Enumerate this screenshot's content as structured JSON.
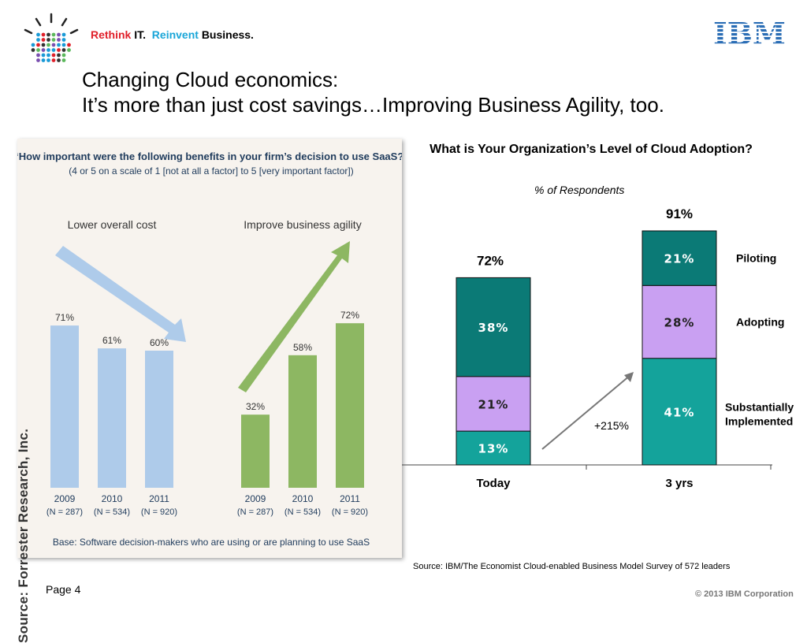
{
  "header": {
    "tagline": {
      "rethink": "Rethink",
      "it": "IT.",
      "reinvent": "Reinvent",
      "business": "Business."
    },
    "logo_text": "IBM",
    "title_line1": "Changing Cloud economics:",
    "title_line2": "It’s more than just cost savings…Improving Business Agility, too."
  },
  "chart_data": [
    {
      "type": "bar",
      "title": "“How important were the following benefits in your firm’s decision to use SaaS?”",
      "subtitle": "(4 or 5 on a scale of 1 [not at all a factor] to 5 [very important factor])",
      "categories": [
        "2009\n(N = 287)",
        "2010\n(N = 534)",
        "2011\n(N = 920)"
      ],
      "category_years": [
        "2009",
        "2010",
        "2011"
      ],
      "category_ns": [
        "(N = 287)",
        "(N = 534)",
        "(N = 920)"
      ],
      "series": [
        {
          "name": "Lower overall cost",
          "values": [
            71,
            61,
            60
          ],
          "labels": [
            "71%",
            "61%",
            "60%"
          ],
          "color": "#aecbea"
        },
        {
          "name": "Improve business agility",
          "values": [
            32,
            58,
            72
          ],
          "labels": [
            "32%",
            "58%",
            "72%"
          ],
          "color": "#8db762"
        }
      ],
      "base_note": "Base: Software decision-makers who are using or are planning to use SaaS",
      "source": "Source: Forrester Research, Inc.",
      "ylim": [
        0,
        100
      ],
      "legend": "above each group"
    },
    {
      "type": "bar",
      "stacked": true,
      "title": "What is Your Organization’s Level of Cloud Adoption?",
      "subtitle": "% of Respondents",
      "categories": [
        "Today",
        "3 yrs"
      ],
      "series": [
        {
          "name": "Substantially Implemented",
          "values": [
            13,
            41
          ],
          "labels": [
            "13%",
            "41%"
          ],
          "color": "#14a39b"
        },
        {
          "name": "Adopting",
          "values": [
            21,
            28
          ],
          "labels": [
            "21%",
            "28%"
          ],
          "color": "#c9a0f2"
        },
        {
          "name": "Piloting",
          "values": [
            38,
            21
          ],
          "labels": [
            "38%",
            "21%"
          ],
          "color": "#0b7a76"
        }
      ],
      "totals": [
        "72%",
        "91%"
      ],
      "annotation": "+215%",
      "legend": "right, beside 3 yrs bar",
      "ylim": [
        0,
        100
      ],
      "source": "Source: IBM/The Economist Cloud-enabled Business Model Survey of 572 leaders"
    }
  ],
  "footer": {
    "page": "Page 4",
    "copyright": "© 2013 IBM Corporation"
  },
  "colors": {
    "rethink_red": "#e0202a",
    "reinvent_blue": "#1aa6d8",
    "ibm_logo_blue": "#2a6db5"
  }
}
